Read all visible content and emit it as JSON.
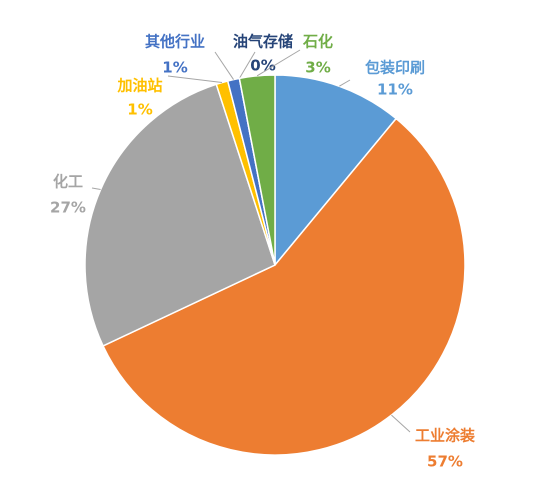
{
  "chart_data": {
    "type": "pie",
    "categories": [
      "包装印刷",
      "工业涂装",
      "化工",
      "加油站",
      "其他行业",
      "油气存储",
      "石化"
    ],
    "values": [
      11,
      57,
      27,
      1,
      1,
      0,
      3
    ],
    "value_labels": [
      "11%",
      "57%",
      "27%",
      "1%",
      "1%",
      "0%",
      "3%"
    ],
    "colors": [
      "#5b9bd5",
      "#ed7d31",
      "#a5a5a5",
      "#ffc000",
      "#4472c4",
      "#264478",
      "#70ad47"
    ]
  }
}
